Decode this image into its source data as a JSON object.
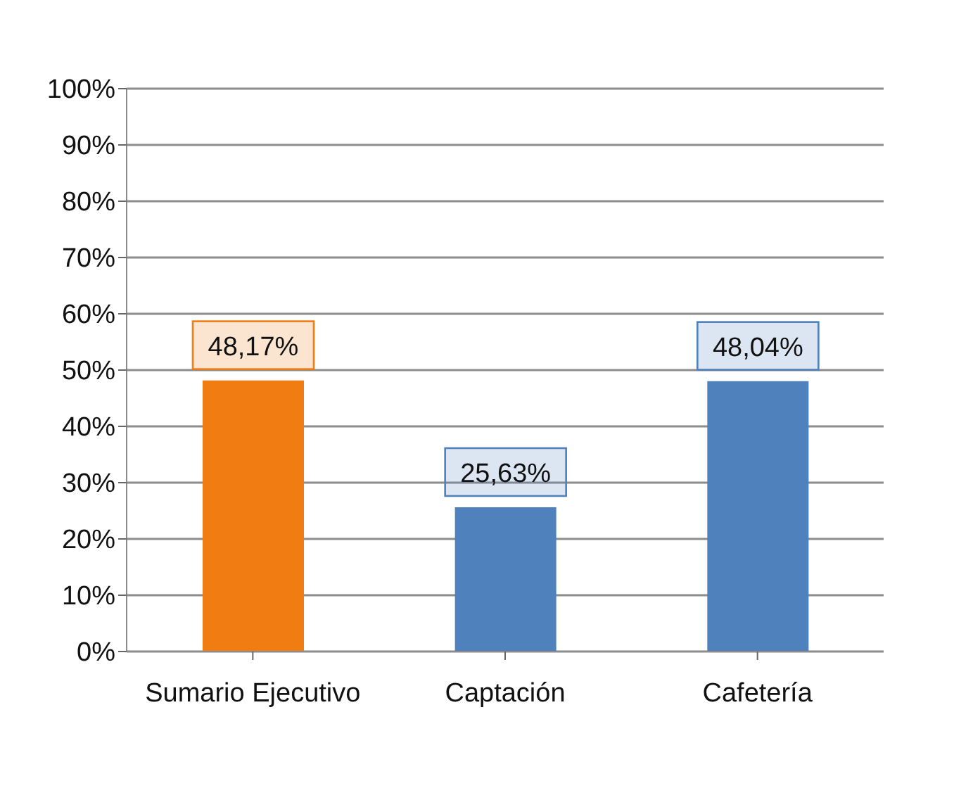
{
  "chart_data": {
    "type": "bar",
    "categories": [
      "Sumario Ejecutivo",
      "Captación",
      "Cafetería"
    ],
    "values": [
      48.17,
      25.63,
      48.04
    ],
    "colors": [
      "#f07c12",
      "#4f81bd",
      "#4f81bd"
    ],
    "value_labels": [
      "48,17%",
      "25,63%",
      "48,04%"
    ],
    "ylim": [
      0,
      100
    ],
    "yticks": [
      {
        "value": 0,
        "label": "0%"
      },
      {
        "value": 10,
        "label": "10%"
      },
      {
        "value": 20,
        "label": "20%"
      },
      {
        "value": 30,
        "label": "30%"
      },
      {
        "value": 40,
        "label": "40%"
      },
      {
        "value": 50,
        "label": "50%"
      },
      {
        "value": 60,
        "label": "60%"
      },
      {
        "value": 70,
        "label": "70%"
      },
      {
        "value": 80,
        "label": "80%"
      },
      {
        "value": 90,
        "label": "90%"
      },
      {
        "value": 100,
        "label": "100%"
      }
    ],
    "grid": "y"
  }
}
